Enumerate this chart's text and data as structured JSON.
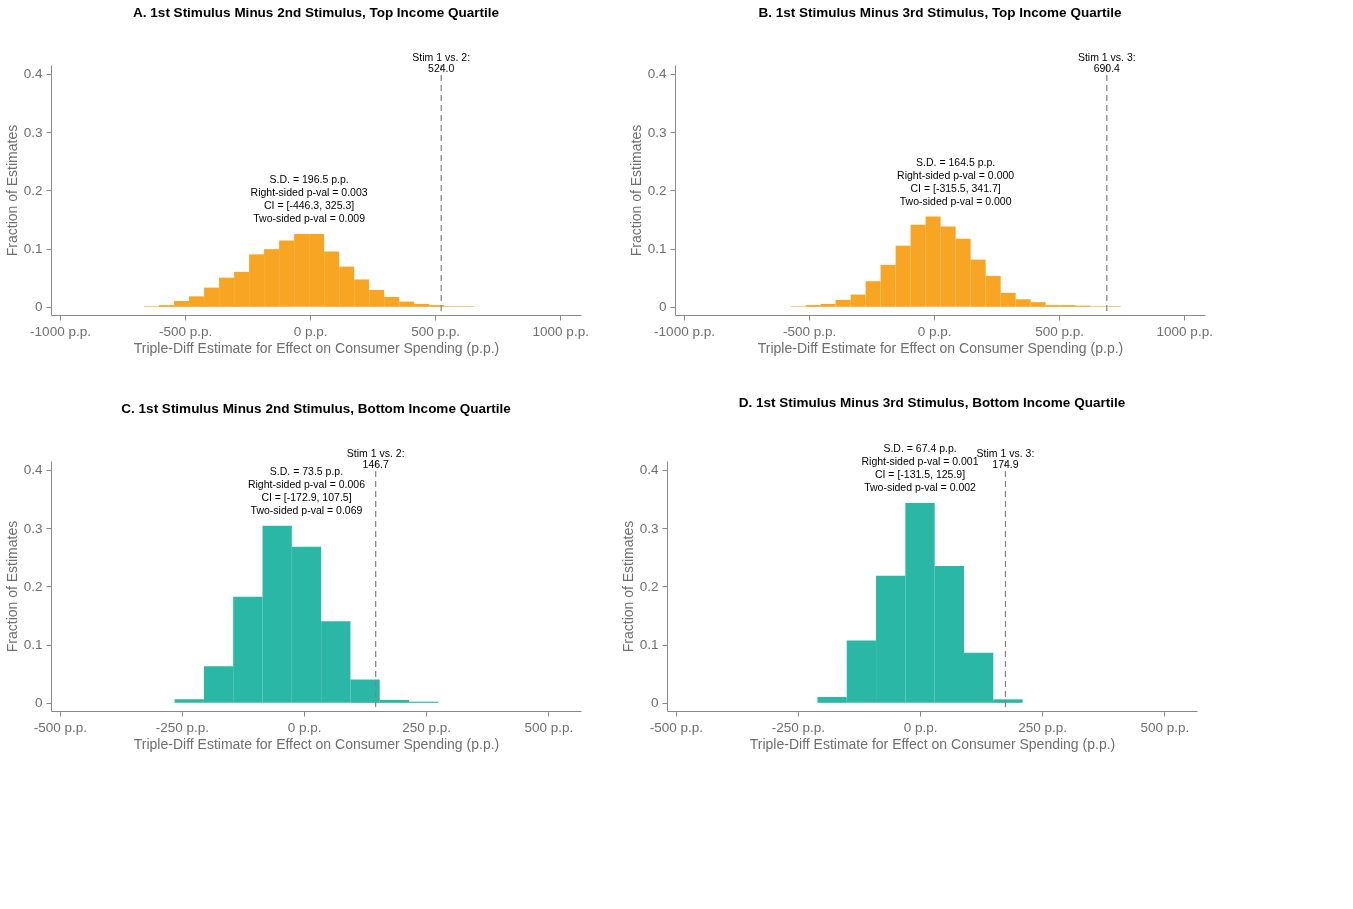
{
  "chart_data": [
    {
      "type": "histogram",
      "title": "A. 1st Stimulus Minus 2nd Stimulus, Top Income Quartile",
      "xlabel": "Triple-Diff Estimate for Effect on Consumer Spending (p.p.)",
      "ylabel": "Fraction of Estimates",
      "color": "#f8a523",
      "grid": false,
      "bins": [
        -664,
        -604,
        -544,
        -484,
        -424,
        -364,
        -304,
        -244,
        -184,
        -124,
        -64,
        -4,
        56,
        116,
        176,
        236,
        296,
        356,
        416,
        476,
        536,
        596,
        656
      ],
      "values": [
        0.001,
        0.003,
        0.01,
        0.018,
        0.033,
        0.05,
        0.06,
        0.09,
        0.099,
        0.114,
        0.125,
        0.125,
        0.095,
        0.069,
        0.047,
        0.029,
        0.017,
        0.009,
        0.005,
        0.003,
        0.001,
        0.001
      ],
      "xlim": [
        -1036,
        1083
      ],
      "ylim": [
        -0.014,
        0.415
      ],
      "xticks": [
        {
          "value": -1000,
          "label": "-1000 p.p."
        },
        {
          "value": -500,
          "label": "-500 p.p."
        },
        {
          "value": 0,
          "label": "0 p.p."
        },
        {
          "value": 500,
          "label": "500 p.p."
        },
        {
          "value": 1000,
          "label": "1000 p.p."
        }
      ],
      "yticks": [
        0,
        0.1,
        0.2,
        0.3,
        0.4
      ],
      "ref_lines": [
        {
          "axis": "x",
          "value": 524.0,
          "label": "Stim 1 vs. 2:\n524.0",
          "color": "#808080",
          "line_style": "dashed"
        }
      ],
      "annotations": [
        "S.D. = 196.5 p.p.",
        "Right-sided p-val = 0.003",
        "CI = [-446.3, 325.3]",
        "Two-sided p-val = 0.009"
      ]
    },
    {
      "type": "histogram",
      "title": "B. 1st Stimulus Minus 3rd Stimulus, Top Income Quartile",
      "xlabel": "Triple-Diff Estimate for Effect on Consumer Spending (p.p.)",
      "ylabel": "Fraction of Estimates",
      "color": "#f8a523",
      "grid": false,
      "bins": [
        -574,
        -514,
        -454,
        -394,
        -334,
        -274,
        -214,
        -154,
        -94,
        -34,
        26,
        86,
        146,
        206,
        266,
        326,
        386,
        446,
        506,
        566,
        626,
        686,
        746
      ],
      "values": [
        0.001,
        0.003,
        0.005,
        0.012,
        0.021,
        0.044,
        0.072,
        0.105,
        0.141,
        0.155,
        0.138,
        0.117,
        0.081,
        0.053,
        0.024,
        0.013,
        0.008,
        0.003,
        0.003,
        0.002,
        0.001,
        0.001
      ],
      "xlim": [
        -1036,
        1083
      ],
      "ylim": [
        -0.014,
        0.415
      ],
      "xticks": [
        {
          "value": -1000,
          "label": "-1000 p.p."
        },
        {
          "value": -500,
          "label": "-500 p.p."
        },
        {
          "value": 0,
          "label": "0 p.p."
        },
        {
          "value": 500,
          "label": "500 p.p."
        },
        {
          "value": 1000,
          "label": "1000 p.p."
        }
      ],
      "yticks": [
        0,
        0.1,
        0.2,
        0.3,
        0.4
      ],
      "ref_lines": [
        {
          "axis": "x",
          "value": 690.4,
          "label": "Stim 1 vs. 3:\n690.4",
          "color": "#808080",
          "line_style": "dashed"
        }
      ],
      "annotations": [
        "S.D. = 164.5 p.p.",
        "Right-sided p-val = 0.000",
        "CI = [-315.5, 341.7]",
        "Two-sided p-val = 0.000"
      ]
    },
    {
      "type": "histogram",
      "title": "C. 1st Stimulus Minus 2nd Stimulus, Bottom Income Quartile",
      "xlabel": "Triple-Diff Estimate for Effect on Consumer Spending (p.p.)",
      "ylabel": "Fraction of Estimates",
      "color": "#2ab7a6",
      "grid": false,
      "bins": [
        -265,
        -205,
        -145,
        -85,
        -25,
        35,
        95,
        155,
        215,
        275
      ],
      "values": [
        0.006,
        0.063,
        0.182,
        0.304,
        0.268,
        0.14,
        0.04,
        0.005,
        0.002
      ],
      "xlim": [
        -518,
        567
      ],
      "ylim": [
        -0.014,
        0.415
      ],
      "xticks": [
        {
          "value": -500,
          "label": "-500 p.p."
        },
        {
          "value": -250,
          "label": "-250 p.p."
        },
        {
          "value": 0,
          "label": "0 p.p."
        },
        {
          "value": 250,
          "label": "250 p.p."
        },
        {
          "value": 500,
          "label": "500 p.p."
        }
      ],
      "yticks": [
        0,
        0.1,
        0.2,
        0.3,
        0.4
      ],
      "ref_lines": [
        {
          "axis": "x",
          "value": 146.7,
          "label": "Stim 1 vs. 2:\n146.7",
          "color": "#808080",
          "line_style": "dashed"
        }
      ],
      "annotations": [
        "S.D. = 73.5 p.p.",
        "Right-sided p-val = 0.006",
        "CI = [-172.9, 107.5]",
        "Two-sided p-val = 0.069"
      ]
    },
    {
      "type": "histogram",
      "title": "D. 1st Stimulus Minus 3rd Stimulus, Bottom Income Quartile",
      "xlabel": "Triple-Diff Estimate for Effect on Consumer Spending (p.p.)",
      "ylabel": "Fraction of Estimates",
      "color": "#2ab7a6",
      "grid": false,
      "bins": [
        -210,
        -150,
        -90,
        -30,
        30,
        90,
        150,
        210
      ],
      "values": [
        0.01,
        0.107,
        0.218,
        0.343,
        0.235,
        0.086,
        0.006
      ],
      "xlim": [
        -518,
        567
      ],
      "ylim": [
        -0.014,
        0.415
      ],
      "xticks": [
        {
          "value": -500,
          "label": "-500 p.p."
        },
        {
          "value": -250,
          "label": "-250 p.p."
        },
        {
          "value": 0,
          "label": "0 p.p."
        },
        {
          "value": 250,
          "label": "250 p.p."
        },
        {
          "value": 500,
          "label": "500 p.p."
        }
      ],
      "yticks": [
        0,
        0.1,
        0.2,
        0.3,
        0.4
      ],
      "ref_lines": [
        {
          "axis": "x",
          "value": 174.9,
          "label": "Stim 1 vs. 3:\n174.9",
          "color": "#808080",
          "line_style": "dashed"
        }
      ],
      "annotations": [
        "S.D. = 67.4 p.p.",
        "Right-sided p-val = 0.001",
        "CI = [-131.5, 125.9]",
        "Two-sided p-val = 0.002"
      ]
    }
  ]
}
